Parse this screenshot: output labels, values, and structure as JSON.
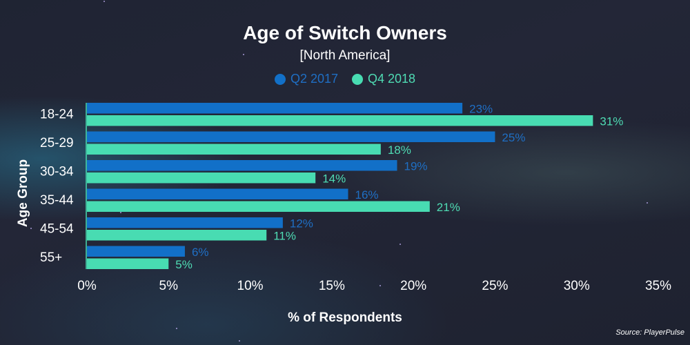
{
  "colors": {
    "series_1": "#1270c8",
    "series_2": "#48dcb2",
    "series_1_label": "#1f6fc4",
    "series_2_label": "#4fdcb4",
    "text": "#ffffff",
    "axis_line": "#48dcb2"
  },
  "chart_data": {
    "type": "bar",
    "orientation": "horizontal",
    "title": "Age of Switch Owners",
    "subtitle": "[North America]",
    "xlabel": "% of Respondents",
    "ylabel": "Age Group",
    "categories": [
      "18-24",
      "25-29",
      "30-34",
      "35-44",
      "45-54",
      "55+"
    ],
    "series": [
      {
        "name": "Q2 2017",
        "values": [
          23,
          25,
          19,
          16,
          12,
          6
        ],
        "labels": [
          "23%",
          "25%",
          "19%",
          "16%",
          "12%",
          "6%"
        ]
      },
      {
        "name": "Q4 2018",
        "values": [
          31,
          18,
          14,
          21,
          11,
          5
        ],
        "labels": [
          "31%",
          "18%",
          "14%",
          "21%",
          "11%",
          "5%"
        ]
      }
    ],
    "xlim": [
      0,
      35
    ],
    "xticks": [
      0,
      5,
      10,
      15,
      20,
      25,
      30,
      35
    ],
    "xtick_labels": [
      "0%",
      "5%",
      "10%",
      "15%",
      "20%",
      "25%",
      "30%",
      "35%"
    ],
    "grid": false,
    "legend_position": "top-center",
    "source": "Source: PlayerPulse"
  }
}
